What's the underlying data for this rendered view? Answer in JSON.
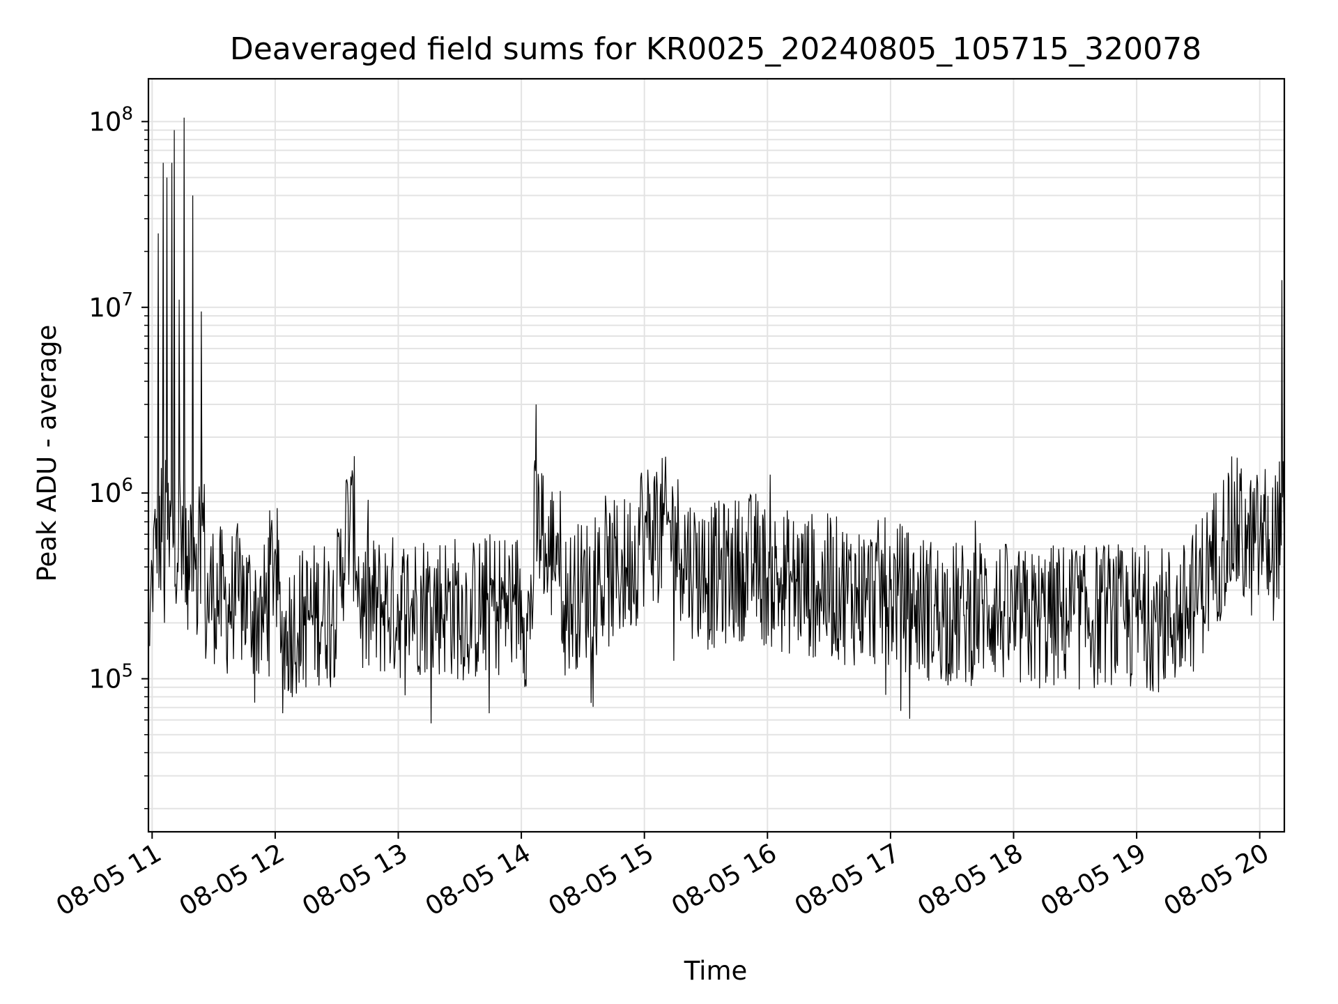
{
  "chart_data": {
    "type": "line",
    "title": "Deaveraged field sums for KR0025_20240805_105715_320078",
    "xlabel": "Time",
    "ylabel": "Peak ADU - average",
    "yscale": "log",
    "grid": true,
    "legend": "none",
    "line_color": "#000000",
    "x_ticks": [
      "08-05 11",
      "08-05 12",
      "08-05 13",
      "08-05 14",
      "08-05 15",
      "08-05 16",
      "08-05 17",
      "08-05 18",
      "08-05 19",
      "08-05 20"
    ],
    "y_ticks": [
      {
        "base": "10",
        "exp": "5",
        "value": 100000
      },
      {
        "base": "10",
        "exp": "6",
        "value": 1000000
      },
      {
        "base": "10",
        "exp": "7",
        "value": 10000000
      },
      {
        "base": "10",
        "exp": "8",
        "value": 100000000
      }
    ],
    "xlim_hours": [
      10.97,
      20.2
    ],
    "ylim": [
      15000,
      170000000
    ],
    "series": [
      {
        "x_hours": [
          10.98,
          11.0,
          11.03,
          11.05,
          11.07,
          11.09,
          11.1,
          11.12,
          11.14,
          11.16,
          11.18,
          11.2,
          11.22,
          11.24,
          11.26,
          11.28,
          11.3,
          11.33,
          11.37,
          11.4,
          11.43,
          11.5,
          11.6,
          11.7,
          11.8,
          11.9,
          12.0,
          12.05,
          12.1,
          12.15,
          12.3,
          12.5,
          12.62,
          12.7,
          12.9,
          13.0,
          13.2,
          13.4,
          13.6,
          13.8,
          13.95,
          14.0,
          14.05,
          14.1,
          14.12,
          14.2,
          14.3,
          14.35,
          14.5,
          14.7,
          14.85,
          14.95,
          14.97,
          15.0,
          15.1,
          15.2,
          15.3,
          15.4,
          15.5,
          15.7,
          15.9,
          16.0,
          16.2,
          16.4,
          16.6,
          16.8,
          17.0,
          17.2,
          17.4,
          17.6,
          17.8,
          17.9,
          18.0,
          18.2,
          18.4,
          18.6,
          18.8,
          18.9,
          19.0,
          19.2,
          19.4,
          19.5,
          19.6,
          19.7,
          19.8,
          19.9,
          20.0,
          20.05,
          20.1,
          20.15,
          20.17,
          20.18,
          20.2
        ],
        "values": [
          150000,
          400000,
          500000,
          25000000,
          300000,
          60000000,
          200000,
          50000000,
          400000,
          60000000,
          90000000,
          300000,
          11000000,
          300000,
          105000000,
          250000,
          300000,
          40000000,
          200000,
          9500000,
          250000,
          300000,
          250000,
          280000,
          250000,
          200000,
          500000,
          150000,
          180000,
          200000,
          220000,
          250000,
          1100000,
          230000,
          250000,
          240000,
          260000,
          250000,
          230000,
          260000,
          250000,
          300000,
          180000,
          350000,
          3000000,
          400000,
          600000,
          250000,
          300000,
          350000,
          400000,
          500000,
          1200000,
          500000,
          1300000,
          700000,
          500000,
          400000,
          350000,
          380000,
          420000,
          350000,
          330000,
          320000,
          300000,
          280000,
          300000,
          250000,
          230000,
          220000,
          250000,
          230000,
          200000,
          210000,
          220000,
          210000,
          230000,
          200000,
          220000,
          210000,
          220000,
          300000,
          400000,
          550000,
          700000,
          500000,
          550000,
          600000,
          450000,
          800000,
          1000000,
          14000000,
          500000
        ]
      }
    ]
  }
}
